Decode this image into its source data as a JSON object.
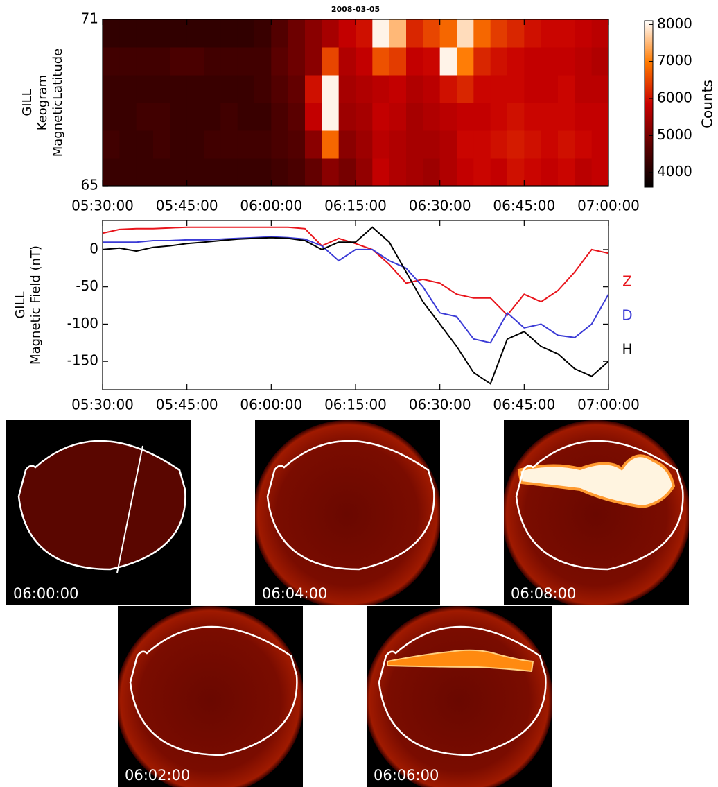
{
  "chart_data": [
    {
      "type": "heatmap",
      "title": "2008-03-05",
      "y_label": [
        "GILL",
        "Keogram",
        "MagneticLatitude"
      ],
      "xbins": [
        "05:30:00",
        "05:33:00",
        "05:36:00",
        "05:39:00",
        "05:42:00",
        "05:45:00",
        "05:48:00",
        "05:51:00",
        "05:54:00",
        "05:57:00",
        "06:00:00",
        "06:03:00",
        "06:06:00",
        "06:09:00",
        "06:12:00",
        "06:15:00",
        "06:18:00",
        "06:21:00",
        "06:24:00",
        "06:27:00",
        "06:30:00",
        "06:33:00",
        "06:36:00",
        "06:39:00",
        "06:42:00",
        "06:45:00",
        "06:48:00",
        "06:51:00",
        "06:54:00",
        "06:57:00",
        "07:00:00"
      ],
      "ybins": [
        65,
        66,
        67,
        68,
        69,
        70,
        71
      ],
      "values": [
        [
          4300,
          4300,
          4300,
          4300,
          4300,
          4300,
          4300,
          4300,
          4300,
          4300,
          4400,
          4500,
          4800,
          5200,
          5000,
          5300,
          5800,
          5600,
          5500,
          5400,
          5600,
          5800,
          5900,
          5800,
          6000,
          5900,
          5800,
          5900,
          5700,
          5800
        ],
        [
          4400,
          4300,
          4300,
          4400,
          4300,
          4300,
          4400,
          4400,
          4400,
          4400,
          4500,
          4600,
          5200,
          6800,
          5200,
          5400,
          5700,
          5600,
          5500,
          5500,
          5600,
          5900,
          5900,
          6000,
          6100,
          6000,
          5900,
          6000,
          5900,
          5800
        ],
        [
          4300,
          4300,
          4400,
          4400,
          4300,
          4300,
          4300,
          4400,
          4300,
          4300,
          4500,
          4700,
          5800,
          8000,
          5400,
          5500,
          5800,
          5700,
          5500,
          5600,
          5700,
          5800,
          5800,
          5900,
          6000,
          5900,
          5900,
          5900,
          5800,
          5800
        ],
        [
          4300,
          4300,
          4300,
          4300,
          4300,
          4300,
          4300,
          4300,
          4300,
          4400,
          4600,
          4800,
          6000,
          8000,
          5500,
          5600,
          5700,
          5800,
          5600,
          5700,
          6000,
          6200,
          5900,
          5900,
          5900,
          5800,
          5800,
          5900,
          5700,
          5700
        ],
        [
          4400,
          4400,
          4400,
          4400,
          4500,
          4500,
          4400,
          4400,
          4400,
          4400,
          4700,
          4900,
          5200,
          6500,
          5600,
          5800,
          6600,
          6400,
          5800,
          5900,
          8000,
          7000,
          6200,
          6000,
          5900,
          5800,
          5800,
          5800,
          5700,
          5600
        ],
        [
          4200,
          4200,
          4200,
          4200,
          4200,
          4200,
          4200,
          4200,
          4200,
          4300,
          4600,
          4900,
          5200,
          5500,
          5800,
          6000,
          8000,
          7500,
          6200,
          6500,
          6800,
          7800,
          6800,
          6400,
          6200,
          6000,
          5900,
          5900,
          5800,
          5700
        ]
      ],
      "xlim": [
        "05:30:00",
        "07:00:00"
      ],
      "xticks": [
        "05:30:00",
        "05:45:00",
        "06:00:00",
        "06:15:00",
        "06:30:00",
        "06:45:00",
        "07:00:00"
      ],
      "ylim": [
        65,
        71
      ],
      "yticks": [
        65,
        71
      ],
      "colorbar_label": "Counts",
      "zlim": [
        3600,
        8100
      ],
      "zticks": [
        4000,
        5000,
        6000,
        7000,
        8000
      ],
      "colormap": [
        "#000000",
        "#5c0000",
        "#c80000",
        "#ff7a00",
        "#ffffff"
      ]
    },
    {
      "type": "line",
      "y_label": [
        "GILL",
        "Magnetic Field (nT)"
      ],
      "x": [
        "05:30:00",
        "05:33:00",
        "05:36:00",
        "05:39:00",
        "05:42:00",
        "05:45:00",
        "05:48:00",
        "05:51:00",
        "05:54:00",
        "05:57:00",
        "06:00:00",
        "06:03:00",
        "06:06:00",
        "06:09:00",
        "06:12:00",
        "06:15:00",
        "06:18:00",
        "06:21:00",
        "06:24:00",
        "06:27:00",
        "06:30:00",
        "06:33:00",
        "06:36:00",
        "06:39:00",
        "06:42:00",
        "06:45:00",
        "06:48:00",
        "06:51:00",
        "06:54:00",
        "06:57:00",
        "07:00:00"
      ],
      "series": [
        {
          "name": "Z",
          "color": "#e8141b",
          "values": [
            22,
            27,
            28,
            28,
            29,
            30,
            30,
            30,
            30,
            30,
            30,
            30,
            28,
            5,
            15,
            8,
            0,
            -20,
            -45,
            -40,
            -45,
            -60,
            -65,
            -65,
            -88,
            -60,
            -70,
            -55,
            -30,
            0,
            -5
          ]
        },
        {
          "name": "D",
          "color": "#3b3bd6",
          "values": [
            10,
            10,
            10,
            12,
            12,
            13,
            13,
            14,
            15,
            16,
            17,
            16,
            14,
            5,
            -15,
            0,
            0,
            -15,
            -25,
            -50,
            -85,
            -90,
            -120,
            -125,
            -85,
            -105,
            -100,
            -115,
            -118,
            -100,
            -60
          ]
        },
        {
          "name": "H",
          "color": "#000000",
          "values": [
            0,
            2,
            -2,
            3,
            5,
            8,
            10,
            12,
            14,
            15,
            16,
            15,
            12,
            0,
            10,
            10,
            30,
            10,
            -30,
            -70,
            -100,
            -130,
            -165,
            -180,
            -120,
            -110,
            -130,
            -140,
            -160,
            -170,
            -150
          ]
        }
      ],
      "xlim": [
        "05:30:00",
        "07:00:00"
      ],
      "xticks": [
        "05:30:00",
        "05:45:00",
        "06:00:00",
        "06:15:00",
        "06:30:00",
        "06:45:00",
        "07:00:00"
      ],
      "ylim": [
        -188,
        39
      ],
      "yticks": [
        -150,
        -100,
        -50,
        0
      ]
    }
  ],
  "panels": [
    {
      "label": "06:00:00"
    },
    {
      "label": "06:04:00"
    },
    {
      "label": "06:08:00"
    },
    {
      "label": "06:02:00"
    },
    {
      "label": "06:06:00"
    }
  ]
}
